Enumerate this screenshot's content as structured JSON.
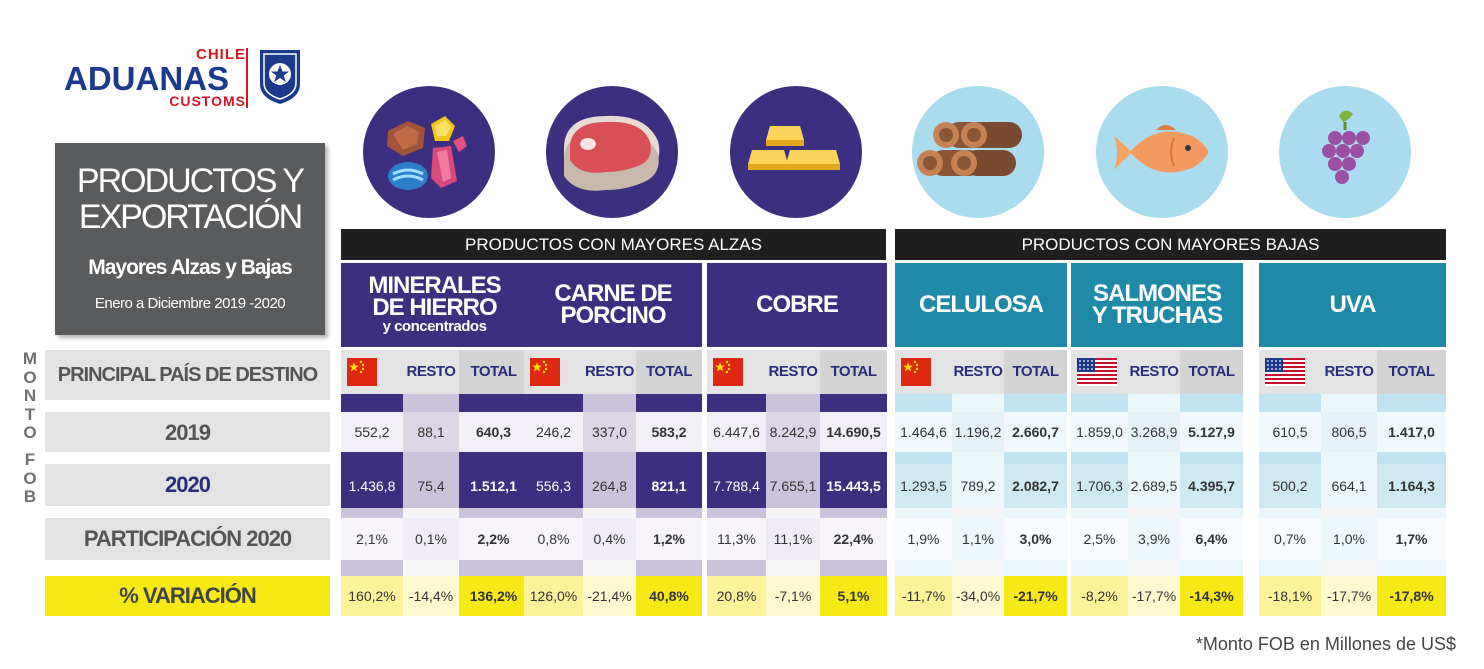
{
  "logo": {
    "chile": "CHILE",
    "aduanas": "ADUANAS",
    "customs": "CUSTOMS"
  },
  "title": {
    "line1": "PRODUCTOS Y",
    "line2": "EXPORTACIÓN",
    "subtitle": "Mayores Alzas y Bajas",
    "period": "Enero a Diciembre  2019 -2020"
  },
  "vertical_label": [
    "M",
    "O",
    "N",
    "T",
    "O",
    "F",
    "O",
    "B"
  ],
  "row_labels": {
    "pais": "PRINCIPAL PAÍS DE DESTINO",
    "y2019": "2019",
    "y2020": "2020",
    "participacion": "PARTICIPACIÓN 2020",
    "variacion": "% VARIACIÓN"
  },
  "sections": {
    "alzas": "PRODUCTOS CON MAYORES ALZAS",
    "bajas": "PRODUCTOS CON MAYORES BAJAS"
  },
  "col_labels": {
    "resto": "RESTO",
    "total": "TOTAL"
  },
  "products": [
    {
      "name_l1": "MINERALES",
      "name_l2": "DE HIERRO",
      "name_sub": "y concentrados",
      "group": "alzas",
      "icon": "minerals-icon",
      "flag": "china-flag",
      "v2019": [
        "552,2",
        "88,1",
        "640,3"
      ],
      "v2020": [
        "1.436,8",
        "75,4",
        "1.512,1"
      ],
      "part": [
        "2,1%",
        "0,1%",
        "2,2%"
      ],
      "var": [
        "160,2%",
        "-14,4%",
        "136,2%"
      ]
    },
    {
      "name_l1": "CARNE DE",
      "name_l2": "PORCINO",
      "name_sub": "",
      "group": "alzas",
      "icon": "meat-icon",
      "flag": "china-flag",
      "v2019": [
        "246,2",
        "337,0",
        "583,2"
      ],
      "v2020": [
        "556,3",
        "264,8",
        "821,1"
      ],
      "part": [
        "0,8%",
        "0,4%",
        "1,2%"
      ],
      "var": [
        "126,0%",
        "-21,4%",
        "40,8%"
      ]
    },
    {
      "name_l1": "COBRE",
      "name_l2": "",
      "name_sub": "",
      "group": "alzas",
      "icon": "gold-bars-icon",
      "flag": "china-flag",
      "v2019": [
        "6.447,6",
        "8.242,9",
        "14.690,5"
      ],
      "v2020": [
        "7.788,4",
        "7.655,1",
        "15.443,5"
      ],
      "part": [
        "11,3%",
        "11,1%",
        "22,4%"
      ],
      "var": [
        "20,8%",
        "-7,1%",
        "5,1%"
      ]
    },
    {
      "name_l1": "CELULOSA",
      "name_l2": "",
      "name_sub": "",
      "group": "bajas",
      "icon": "logs-icon",
      "flag": "china-flag",
      "v2019": [
        "1.464,6",
        "1.196,2",
        "2.660,7"
      ],
      "v2020": [
        "1.293,5",
        "789,2",
        "2.082,7"
      ],
      "part": [
        "1,9%",
        "1,1%",
        "3,0%"
      ],
      "var": [
        "-11,7%",
        "-34,0%",
        "-21,7%"
      ]
    },
    {
      "name_l1": "SALMONES",
      "name_l2": "Y TRUCHAS",
      "name_sub": "",
      "group": "bajas",
      "icon": "fish-icon",
      "flag": "usa-flag",
      "v2019": [
        "1.859,0",
        "3.268,9",
        "5.127,9"
      ],
      "v2020": [
        "1.706,3",
        "2.689,5",
        "4.395,7"
      ],
      "part": [
        "2,5%",
        "3,9%",
        "6,4%"
      ],
      "var": [
        "-8,2%",
        "-17,7%",
        "-14,3%"
      ]
    },
    {
      "name_l1": "UVA",
      "name_l2": "",
      "name_sub": "",
      "group": "bajas",
      "icon": "grapes-icon",
      "flag": "usa-flag",
      "v2019": [
        "610,5",
        "806,5",
        "1.417,0"
      ],
      "v2020": [
        "500,2",
        "664,1",
        "1.164,3"
      ],
      "part": [
        "0,7%",
        "1,0%",
        "1,7%"
      ],
      "var": [
        "-18,1%",
        "-17,7%",
        "-17,8%"
      ]
    }
  ],
  "footnote": "*Monto FOB en Millones de US$"
}
